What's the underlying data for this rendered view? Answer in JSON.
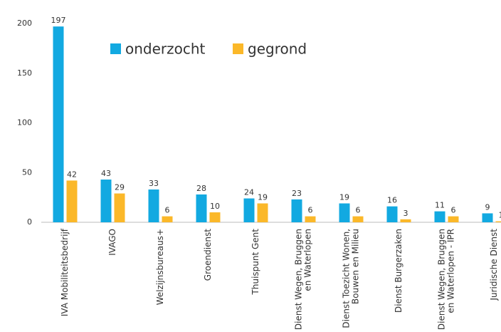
{
  "chart_data": {
    "type": "bar",
    "categories": [
      "IVA Mobiliteitsbedrijf",
      "IVAGO",
      "Welzijnsbureaus+",
      "Groendienst",
      "Thuispunt Gent",
      "Dienst Wegen, Bruggen\nen Waterlopen",
      "Dienst Toezicht Wonen,\nBouwen en Milieu",
      "Dienst Burgerzaken",
      "Dienst Wegen, Bruggen\nen Waterlopen - IPR",
      "Juridische Dienst"
    ],
    "series": [
      {
        "name": "onderzocht",
        "color": "#12a9e1",
        "values": [
          197,
          43,
          33,
          28,
          24,
          23,
          19,
          16,
          11,
          9
        ]
      },
      {
        "name": "gegrond",
        "color": "#fbb829",
        "values": [
          42,
          29,
          6,
          10,
          19,
          6,
          6,
          3,
          6,
          1
        ]
      }
    ],
    "ylim": [
      0,
      200
    ],
    "yticks": [
      0,
      50,
      100,
      150,
      200
    ],
    "grid": false,
    "legend": "top"
  }
}
